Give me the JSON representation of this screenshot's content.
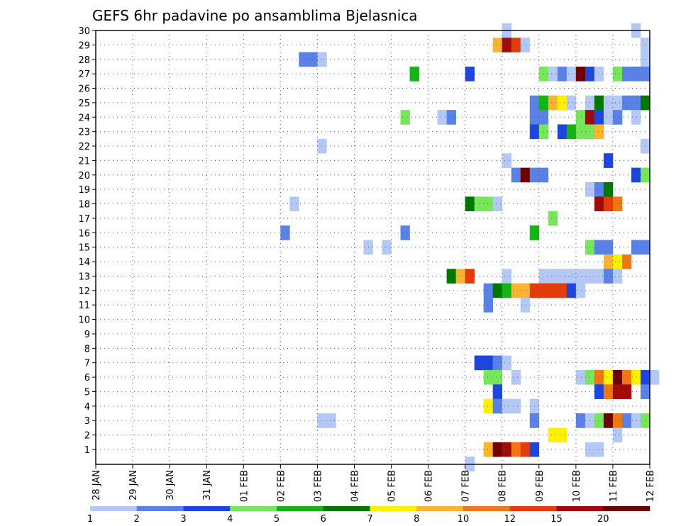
{
  "chart_data": {
    "type": "heatmap",
    "title": "GEFS 6hr padavine po ansamblima Bjelasnica",
    "x_tick_labels": [
      "28 JAN",
      "29 JAN",
      "30 JAN",
      "31 JAN",
      "01 FEB",
      "02 FEB",
      "03 FEB",
      "04 FEB",
      "05 FEB",
      "06 FEB",
      "07 FEB",
      "08 FEB",
      "09 FEB",
      "10 FEB",
      "11 FEB",
      "12 FEB"
    ],
    "y_tick_labels": [
      1,
      2,
      3,
      4,
      5,
      6,
      7,
      8,
      9,
      10,
      11,
      12,
      13,
      14,
      15,
      16,
      17,
      18,
      19,
      20,
      21,
      22,
      23,
      24,
      25,
      26,
      27,
      28,
      29,
      30
    ],
    "x_range": [
      "28 JAN",
      "12 FEB"
    ],
    "y_range": [
      1,
      30
    ],
    "time_step_hours": 6,
    "grid": true,
    "legend_position": "bottom",
    "legend_labels": [
      "1",
      "2",
      "3",
      "4",
      "5",
      "6",
      "7",
      "8",
      "10",
      "12",
      "15",
      "20"
    ],
    "legend_colors": [
      "#b4c8f5",
      "#5a82e6",
      "#1e46dc",
      "#78e65a",
      "#14b414",
      "#007800",
      "#fff000",
      "#fab432",
      "#f07814",
      "#e13c0a",
      "#a00a0a",
      "#6e0000"
    ],
    "cells": [
      {
        "member": 30,
        "steps": [
          [
            44,
            0
          ],
          [
            58,
            0
          ]
        ]
      },
      {
        "member": 29,
        "steps": [
          [
            43,
            7
          ],
          [
            44,
            10
          ],
          [
            45,
            9
          ],
          [
            46,
            0
          ],
          [
            59,
            0
          ]
        ]
      },
      {
        "member": 28,
        "steps": [
          [
            22,
            1
          ],
          [
            23,
            1
          ],
          [
            24,
            0
          ],
          [
            59,
            0
          ]
        ]
      },
      {
        "member": 27,
        "steps": [
          [
            34,
            4
          ],
          [
            40,
            2
          ],
          [
            48,
            3
          ],
          [
            49,
            0
          ],
          [
            50,
            1
          ],
          [
            51,
            0
          ],
          [
            52,
            11
          ],
          [
            53,
            2
          ],
          [
            54,
            0
          ],
          [
            56,
            3
          ],
          [
            57,
            1
          ],
          [
            58,
            1
          ],
          [
            59,
            1
          ]
        ]
      },
      {
        "member": 25,
        "steps": [
          [
            47,
            1
          ],
          [
            48,
            4
          ],
          [
            49,
            7
          ],
          [
            50,
            6
          ],
          [
            51,
            0
          ],
          [
            53,
            0
          ],
          [
            54,
            5
          ],
          [
            55,
            0
          ],
          [
            56,
            0
          ],
          [
            57,
            1
          ],
          [
            58,
            1
          ],
          [
            59,
            5
          ]
        ]
      },
      {
        "member": 24,
        "steps": [
          [
            33,
            3
          ],
          [
            37,
            0
          ],
          [
            38,
            1
          ],
          [
            47,
            1
          ],
          [
            48,
            1
          ],
          [
            52,
            3
          ],
          [
            53,
            10
          ],
          [
            54,
            2
          ],
          [
            55,
            0
          ],
          [
            56,
            1
          ],
          [
            58,
            0
          ]
        ]
      },
      {
        "member": 23,
        "steps": [
          [
            47,
            2
          ],
          [
            48,
            3
          ],
          [
            50,
            2
          ],
          [
            51,
            4
          ],
          [
            52,
            3
          ],
          [
            53,
            3
          ],
          [
            54,
            7
          ]
        ]
      },
      {
        "member": 22,
        "steps": [
          [
            24,
            0
          ],
          [
            59,
            0
          ]
        ]
      },
      {
        "member": 21,
        "steps": [
          [
            44,
            0
          ],
          [
            55,
            2
          ]
        ]
      },
      {
        "member": 20,
        "steps": [
          [
            45,
            1
          ],
          [
            46,
            11
          ],
          [
            47,
            1
          ],
          [
            48,
            1
          ],
          [
            58,
            2
          ],
          [
            59,
            3
          ]
        ]
      },
      {
        "member": 19,
        "steps": [
          [
            53,
            0
          ],
          [
            54,
            1
          ],
          [
            55,
            5
          ]
        ]
      },
      {
        "member": 18,
        "steps": [
          [
            21,
            0
          ],
          [
            40,
            5
          ],
          [
            41,
            3
          ],
          [
            42,
            3
          ],
          [
            43,
            0
          ],
          [
            54,
            10
          ],
          [
            55,
            9
          ],
          [
            56,
            8
          ]
        ]
      },
      {
        "member": 17,
        "steps": [
          [
            49,
            3
          ]
        ]
      },
      {
        "member": 16,
        "steps": [
          [
            20,
            1
          ],
          [
            33,
            1
          ],
          [
            47,
            4
          ]
        ]
      },
      {
        "member": 15,
        "steps": [
          [
            29,
            0
          ],
          [
            31,
            0
          ],
          [
            53,
            3
          ],
          [
            54,
            1
          ],
          [
            55,
            1
          ],
          [
            58,
            1
          ],
          [
            59,
            1
          ]
        ]
      },
      {
        "member": 14,
        "steps": [
          [
            55,
            7
          ],
          [
            56,
            6
          ],
          [
            57,
            8
          ]
        ]
      },
      {
        "member": 13,
        "steps": [
          [
            38,
            5
          ],
          [
            39,
            7
          ],
          [
            40,
            9
          ],
          [
            44,
            0
          ],
          [
            48,
            0
          ],
          [
            49,
            0
          ],
          [
            50,
            0
          ],
          [
            51,
            0
          ],
          [
            52,
            0
          ],
          [
            53,
            0
          ],
          [
            54,
            0
          ],
          [
            55,
            1
          ],
          [
            56,
            0
          ]
        ]
      },
      {
        "member": 12,
        "steps": [
          [
            42,
            1
          ],
          [
            43,
            5
          ],
          [
            44,
            4
          ],
          [
            45,
            7
          ],
          [
            46,
            7
          ],
          [
            47,
            9
          ],
          [
            48,
            9
          ],
          [
            49,
            9
          ],
          [
            50,
            9
          ],
          [
            51,
            2
          ],
          [
            52,
            0
          ]
        ]
      },
      {
        "member": 11,
        "steps": [
          [
            42,
            1
          ],
          [
            46,
            0
          ]
        ]
      },
      {
        "member": 7,
        "steps": [
          [
            41,
            2
          ],
          [
            42,
            2
          ],
          [
            43,
            1
          ],
          [
            44,
            0
          ]
        ]
      },
      {
        "member": 6,
        "steps": [
          [
            42,
            3
          ],
          [
            43,
            3
          ],
          [
            45,
            0
          ],
          [
            52,
            0
          ],
          [
            53,
            3
          ],
          [
            54,
            8
          ],
          [
            55,
            6
          ],
          [
            56,
            11
          ],
          [
            57,
            8
          ],
          [
            58,
            6
          ],
          [
            59,
            2
          ],
          [
            60,
            0
          ]
        ]
      },
      {
        "member": 5,
        "steps": [
          [
            43,
            2
          ],
          [
            54,
            2
          ],
          [
            55,
            8
          ],
          [
            56,
            10
          ],
          [
            57,
            10
          ],
          [
            59,
            1
          ]
        ]
      },
      {
        "member": 4,
        "steps": [
          [
            42,
            6
          ],
          [
            43,
            1
          ],
          [
            44,
            0
          ],
          [
            45,
            0
          ],
          [
            47,
            0
          ]
        ]
      },
      {
        "member": 3,
        "steps": [
          [
            24,
            0
          ],
          [
            25,
            0
          ],
          [
            47,
            1
          ],
          [
            52,
            1
          ],
          [
            53,
            0
          ],
          [
            54,
            3
          ],
          [
            55,
            11
          ],
          [
            56,
            8
          ],
          [
            57,
            1
          ],
          [
            58,
            0
          ],
          [
            59,
            3
          ]
        ]
      },
      {
        "member": 2,
        "steps": [
          [
            49,
            6
          ],
          [
            50,
            6
          ],
          [
            56,
            0
          ]
        ]
      },
      {
        "member": 1,
        "steps": [
          [
            42,
            7
          ],
          [
            43,
            11
          ],
          [
            44,
            10
          ],
          [
            45,
            8
          ],
          [
            46,
            9
          ],
          [
            47,
            2
          ],
          [
            53,
            0
          ],
          [
            54,
            0
          ]
        ]
      },
      {
        "member": 0,
        "steps": [
          [
            40,
            0
          ]
        ]
      }
    ]
  }
}
